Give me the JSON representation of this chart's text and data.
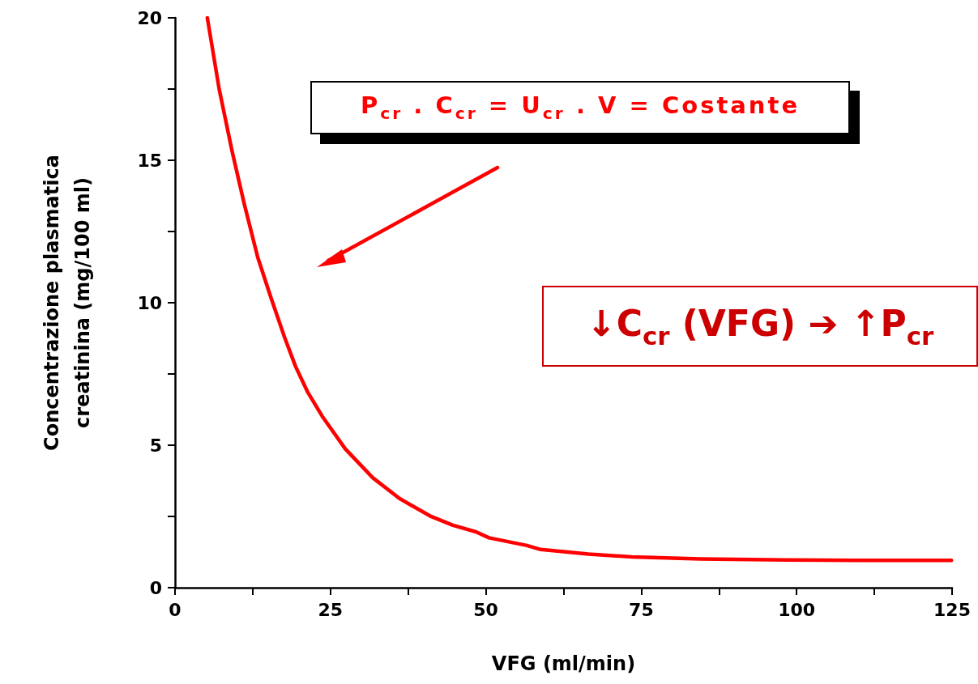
{
  "chart_data": {
    "type": "line",
    "xlabel": "VFG (ml/min)",
    "ylabel": "Concentrazione plasmatica\ncreatinina (mg/100 ml)",
    "xlim": [
      0,
      125
    ],
    "xticks": [
      0,
      {
        "value": 12.5,
        "label": null
      },
      25,
      {
        "value": 37.5,
        "label": null
      },
      50,
      {
        "value": 62.5,
        "label": null
      },
      75,
      {
        "value": 87.5,
        "label": null
      },
      100,
      {
        "value": 112.5,
        "label": null
      },
      125
    ],
    "ylim": [
      0,
      20
    ],
    "yticks": [
      0,
      {
        "value": 2.5,
        "label": null
      },
      5,
      {
        "value": 7.5,
        "label": null
      },
      10,
      {
        "value": 12.5,
        "label": null
      },
      15,
      {
        "value": 17.5,
        "label": null
      },
      20
    ],
    "grid": false,
    "marker": "none",
    "line_style": "solid",
    "series": [
      {
        "color": "#ff0000",
        "x": [
          5.2,
          7.1,
          9.2,
          11.1,
          13.3,
          15.4,
          17.6,
          19.4,
          21.3,
          23.7,
          27.4,
          31.8,
          36.1,
          41.0,
          44.7,
          48.4,
          50.5,
          56.6,
          58.8,
          66.5,
          73.5,
          84.5,
          98.1,
          109,
          124.9
        ],
        "values": [
          20.0,
          17.5,
          15.3,
          13.5,
          11.6,
          10.2,
          8.8,
          7.76,
          6.88,
          6.01,
          4.87,
          3.86,
          3.13,
          2.52,
          2.19,
          1.96,
          1.75,
          1.48,
          1.34,
          1.18,
          1.08,
          1.01,
          0.97,
          0.96,
          0.96
        ]
      }
    ],
    "annotations": [
      "P$_{cr}$ . C$_{cr}$ = U$_{cr}$ . V = Costante",
      "↓C$_{cr}$ (VFG) ➔ ↑P$_{cr}$"
    ]
  }
}
